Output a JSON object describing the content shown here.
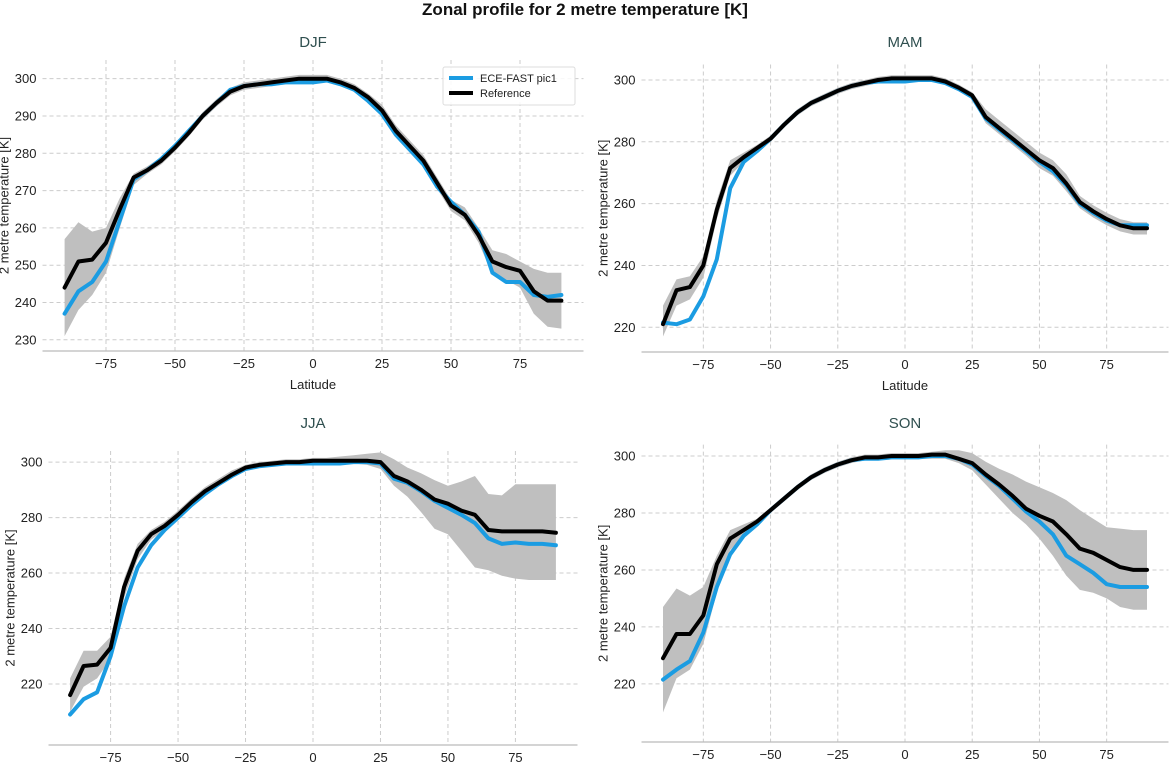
{
  "title": "Zonal profile for 2 metre temperature [K]",
  "colors": {
    "model": "#1b9ce2",
    "reference": "#000000",
    "band": "#bfbfbf",
    "grid": "#cccccc"
  },
  "chart_data": [
    {
      "type": "line",
      "title": "DJF",
      "xlabel": "Latitude",
      "ylabel": "2 metre temperature [K]",
      "xlim": [
        -98,
        98
      ],
      "ylim": [
        227,
        305
      ],
      "grid": true,
      "legend": "top-right",
      "xticks": [
        -75,
        -50,
        -25,
        0,
        25,
        50,
        75
      ],
      "yticks": [
        230,
        240,
        250,
        260,
        270,
        280,
        290,
        300
      ],
      "x": [
        -90,
        -85,
        -80,
        -75,
        -70,
        -65,
        -60,
        -55,
        -50,
        -45,
        -40,
        -35,
        -30,
        -25,
        -20,
        -15,
        -10,
        -5,
        0,
        5,
        10,
        15,
        20,
        25,
        30,
        35,
        40,
        45,
        50,
        55,
        60,
        65,
        70,
        75,
        80,
        85,
        90
      ],
      "series": [
        {
          "name": "ECE-FAST pic1",
          "values": [
            237,
            243,
            245.5,
            251,
            262,
            273,
            275.5,
            278.5,
            282,
            286,
            290,
            293.5,
            297,
            298,
            298.5,
            298.5,
            299,
            299,
            299,
            299.5,
            298.5,
            297,
            294,
            290.5,
            285,
            281,
            277,
            271,
            267,
            263.5,
            259,
            248,
            245.5,
            245.5,
            242,
            241.5,
            242
          ]
        },
        {
          "name": "Reference",
          "values": [
            244,
            251,
            251.5,
            256,
            265,
            273.5,
            275.5,
            278,
            281.5,
            285.5,
            290,
            293.5,
            296.5,
            298,
            298.5,
            299,
            299.5,
            300,
            300,
            300,
            299,
            297.5,
            295,
            291.5,
            286,
            282,
            278,
            272,
            266,
            263.5,
            258,
            251,
            249.5,
            248.5,
            243,
            240.5,
            240.5
          ]
        }
      ],
      "band": {
        "low": [
          231,
          238,
          242,
          248,
          260,
          271.5,
          274.5,
          277,
          280.5,
          284.5,
          289,
          292.5,
          295.5,
          297,
          297.5,
          298,
          298.5,
          299,
          299,
          299,
          298,
          296.5,
          293.5,
          290,
          284.5,
          280.5,
          276.5,
          270.5,
          264.5,
          262,
          256,
          247.5,
          246,
          244,
          237,
          233.5,
          233
        ],
        "high": [
          257,
          261.5,
          259,
          260,
          268,
          274.5,
          276.5,
          279,
          282.5,
          286.5,
          291,
          294.5,
          297.5,
          299,
          299.5,
          300,
          300.5,
          301,
          301,
          301,
          300,
          298.5,
          296,
          293,
          287.5,
          283.5,
          279.5,
          273.5,
          267.5,
          265.5,
          260,
          254,
          253,
          251,
          249,
          248,
          248
        ]
      }
    },
    {
      "type": "line",
      "title": "MAM",
      "xlabel": "Latitude",
      "ylabel": "2 metre temperature [K]",
      "xlim": [
        -98,
        98
      ],
      "ylim": [
        212,
        305
      ],
      "grid": true,
      "xticks": [
        -75,
        -50,
        -25,
        0,
        25,
        50,
        75
      ],
      "yticks": [
        220,
        240,
        260,
        280,
        300
      ],
      "x": [
        -90,
        -85,
        -80,
        -75,
        -70,
        -65,
        -60,
        -55,
        -50,
        -45,
        -40,
        -35,
        -30,
        -25,
        -20,
        -15,
        -10,
        -5,
        0,
        5,
        10,
        15,
        20,
        25,
        30,
        35,
        40,
        45,
        50,
        55,
        60,
        65,
        70,
        75,
        80,
        85,
        90
      ],
      "series": [
        {
          "name": "ECE-FAST pic1",
          "values": [
            221.5,
            221,
            222.5,
            230,
            242,
            265,
            273.5,
            277,
            281,
            285.5,
            289.5,
            292.5,
            294.5,
            296.5,
            298,
            299,
            299.5,
            299.5,
            299.5,
            300,
            300,
            299,
            297,
            294.5,
            287.5,
            284,
            280.5,
            277,
            273.5,
            270.5,
            266,
            260,
            257,
            254.5,
            253,
            253,
            253
          ]
        },
        {
          "name": "Reference",
          "values": [
            221,
            232,
            233,
            240,
            258,
            271.5,
            275,
            278,
            281,
            285.5,
            289.5,
            292.5,
            294.5,
            296.5,
            298,
            299,
            300,
            300.5,
            300.5,
            300.5,
            300.5,
            299.5,
            297.5,
            295,
            288,
            284.5,
            281,
            277.5,
            274,
            271.5,
            266.5,
            260.5,
            257.5,
            255,
            253,
            252,
            252
          ]
        }
      ],
      "band": {
        "low": [
          217,
          227,
          229,
          236,
          255,
          269,
          273.5,
          276.5,
          280,
          284.5,
          288.5,
          291.5,
          293.5,
          295.5,
          297,
          298,
          299,
          299.5,
          299.5,
          299.5,
          299.5,
          298.5,
          296.5,
          294,
          286,
          282.5,
          279,
          275.5,
          271.5,
          269,
          264,
          258.5,
          255.5,
          253,
          251,
          250,
          250
        ],
        "high": [
          227,
          235.5,
          236.5,
          243,
          261,
          274,
          276.5,
          279,
          282,
          286.5,
          290.5,
          293.5,
          295.5,
          297.5,
          299,
          300,
          301,
          301.5,
          301.5,
          301.5,
          301.5,
          300.5,
          298.5,
          296,
          290.5,
          287,
          283.5,
          280,
          276.5,
          274,
          269.5,
          262.5,
          259.5,
          257,
          255,
          254,
          254
        ]
      }
    },
    {
      "type": "line",
      "title": "JJA",
      "xlabel": "Latitude",
      "ylabel": "2 metre temperature [K]",
      "xlim": [
        -98,
        98
      ],
      "ylim": [
        198,
        304
      ],
      "grid": true,
      "xticks": [
        -75,
        -50,
        -25,
        0,
        25,
        50,
        75
      ],
      "yticks": [
        220,
        240,
        260,
        280,
        300
      ],
      "x": [
        -90,
        -85,
        -80,
        -75,
        -70,
        -65,
        -60,
        -55,
        -50,
        -45,
        -40,
        -35,
        -30,
        -25,
        -20,
        -15,
        -10,
        -5,
        0,
        5,
        10,
        15,
        20,
        25,
        30,
        35,
        40,
        45,
        50,
        55,
        60,
        65,
        70,
        75,
        80,
        85,
        90
      ],
      "series": [
        {
          "name": "ECE-FAST pic1",
          "values": [
            209,
            214.5,
            217,
            230,
            248,
            262,
            270,
            275.5,
            280,
            284.5,
            288.5,
            292,
            295,
            297.5,
            298.5,
            299,
            299.5,
            299.5,
            299.5,
            299.5,
            299.5,
            300,
            300,
            299.5,
            294,
            292.5,
            289.5,
            286,
            283.5,
            281,
            278,
            272.5,
            270.5,
            271,
            270.5,
            270.5,
            270
          ]
        },
        {
          "name": "Reference",
          "values": [
            216,
            226.5,
            227,
            233,
            255,
            268,
            274,
            277,
            281,
            285.5,
            289.5,
            292.5,
            295.5,
            298,
            299,
            299.5,
            300,
            300,
            300.5,
            300.5,
            300.5,
            300.5,
            300.5,
            300,
            295,
            293,
            290,
            286.5,
            285,
            282.5,
            281,
            275.5,
            275,
            275,
            275,
            275,
            274.5
          ]
        }
      ],
      "band": {
        "low": [
          210,
          219,
          222,
          229,
          251,
          265,
          272,
          275.5,
          279.5,
          284,
          288,
          291.5,
          294.5,
          297,
          298,
          299,
          299,
          299,
          299.5,
          299.5,
          299.5,
          299.5,
          299,
          297.5,
          291.5,
          287.5,
          282,
          276,
          274,
          268,
          262,
          261,
          259,
          258,
          257.5,
          257.5,
          257.5
        ],
        "high": [
          222,
          232,
          232,
          237,
          258,
          270.5,
          275.5,
          278.5,
          282.5,
          287,
          291,
          294,
          297,
          299,
          300,
          300.5,
          301,
          301,
          301.5,
          301.5,
          302,
          302.5,
          303,
          303.5,
          301,
          298,
          296,
          293.5,
          291.5,
          293,
          295,
          288.5,
          288,
          292,
          292,
          292,
          292
        ]
      }
    },
    {
      "type": "line",
      "title": "SON",
      "xlabel": "Latitude",
      "ylabel": "2 metre temperature [K]",
      "xlim": [
        -98,
        98
      ],
      "ylim": [
        199.6,
        304
      ],
      "grid": true,
      "xticks": [
        -75,
        -50,
        -25,
        0,
        25,
        50,
        75
      ],
      "yticks": [
        220,
        240,
        260,
        280,
        300
      ],
      "x": [
        -90,
        -85,
        -80,
        -75,
        -70,
        -65,
        -60,
        -55,
        -50,
        -45,
        -40,
        -35,
        -30,
        -25,
        -20,
        -15,
        -10,
        -5,
        0,
        5,
        10,
        15,
        20,
        25,
        30,
        35,
        40,
        45,
        50,
        55,
        60,
        65,
        70,
        75,
        80,
        85,
        90
      ],
      "series": [
        {
          "name": "ECE-FAST pic1",
          "values": [
            221.5,
            225,
            228,
            238,
            254,
            265.5,
            272,
            276,
            281,
            285,
            289,
            292.5,
            295,
            297,
            298.5,
            299,
            299,
            299.5,
            299.5,
            299.5,
            300,
            300,
            299,
            297,
            293,
            289.5,
            285,
            280.5,
            277,
            272.5,
            265,
            262,
            259,
            255,
            254,
            254,
            254
          ]
        },
        {
          "name": "Reference",
          "values": [
            229,
            237.5,
            237.5,
            244,
            262,
            271,
            274,
            277,
            281,
            285,
            289,
            292.5,
            295,
            297,
            298.5,
            299.5,
            299.5,
            300,
            300,
            300,
            300.5,
            300.5,
            299,
            297.5,
            293.5,
            290,
            286,
            281.5,
            279,
            277,
            272.5,
            267.5,
            266,
            263.5,
            261,
            260,
            260
          ]
        }
      ],
      "band": {
        "low": [
          210,
          222,
          225,
          234,
          252,
          267,
          272,
          276,
          280,
          284,
          288,
          291.5,
          294,
          296,
          297.5,
          298.5,
          298.5,
          299,
          299,
          299,
          299,
          299,
          297.5,
          295,
          290,
          285,
          280,
          276,
          271,
          265,
          258,
          253,
          252,
          250,
          247,
          246,
          246
        ],
        "high": [
          247,
          253.5,
          251,
          254,
          265,
          274,
          276,
          278,
          282,
          286,
          290,
          293.5,
          296,
          298,
          299.5,
          300.5,
          300.5,
          301,
          301,
          301,
          301.5,
          302,
          302,
          301,
          298,
          295.5,
          293.5,
          291,
          289,
          287,
          284.5,
          281,
          278,
          275,
          274.5,
          274,
          274
        ]
      }
    }
  ]
}
